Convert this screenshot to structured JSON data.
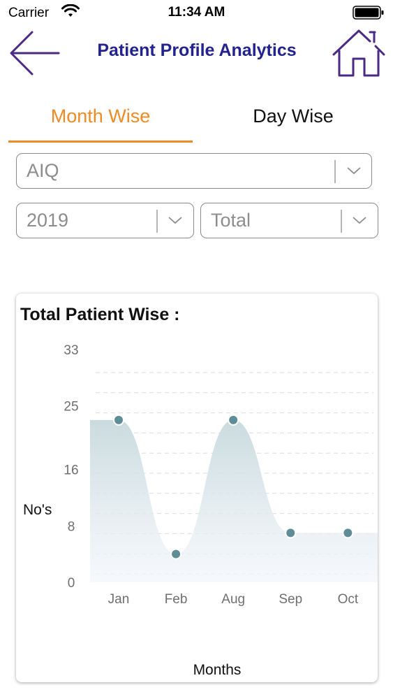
{
  "status_bar": {
    "carrier": "Carrier",
    "time": "11:34 AM"
  },
  "header": {
    "title": "Patient Profile Analytics",
    "back_icon": "arrow-left-icon",
    "home_icon": "home-icon"
  },
  "tabs": [
    {
      "label": "Month Wise",
      "active": true
    },
    {
      "label": "Day Wise",
      "active": false
    }
  ],
  "filters": {
    "metric": "AIQ",
    "year": "2019",
    "type": "Total"
  },
  "colors": {
    "title": "#23238f",
    "accent": "#f08a24",
    "point": "#5f8d97",
    "area_top": "#c7d9dd",
    "icon_purple": "#4b2a86"
  },
  "chart_data": {
    "type": "area",
    "title": "Total Patient Wise :",
    "xlabel": "Months",
    "ylabel": "No's",
    "categories": [
      "Jan",
      "Feb",
      "Aug",
      "Sep",
      "Oct"
    ],
    "values": [
      23,
      4,
      23,
      7,
      7
    ],
    "y_ticks": [
      0,
      8,
      16,
      25,
      33
    ],
    "ylim": [
      0,
      33
    ],
    "grid": true
  }
}
